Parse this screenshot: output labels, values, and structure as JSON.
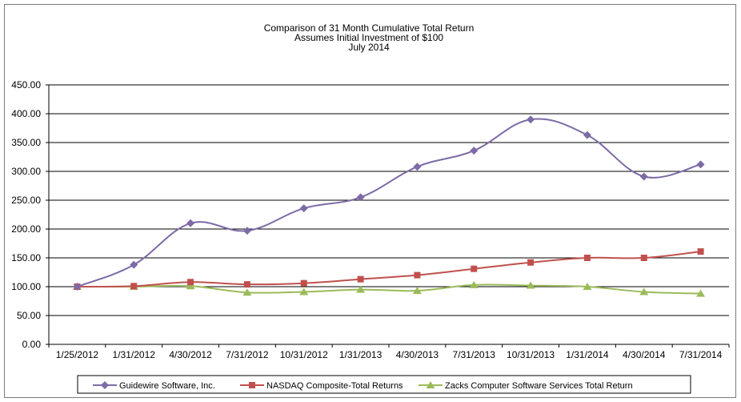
{
  "chart_data": {
    "type": "line",
    "title_lines": [
      "Comparison  of 31 Month Cumulative  Total Return",
      "Assumes Initial Investment  of $100",
      "July 2014"
    ],
    "categories": [
      "1/25/2012",
      "1/31/2012",
      "4/30/2012",
      "7/31/2012",
      "10/31/2012",
      "1/31/2013",
      "4/30/2013",
      "7/31/2013",
      "10/31/2013",
      "1/31/2014",
      "4/30/2014",
      "7/31/2014"
    ],
    "y_ticks": [
      "0.00",
      "50.00",
      "100.00",
      "150.00",
      "200.00",
      "250.00",
      "300.00",
      "350.00",
      "400.00",
      "450.00"
    ],
    "ylim": [
      0,
      450
    ],
    "grid": true,
    "legend_position": "bottom",
    "series": [
      {
        "name": "Guidewire Software, Inc.",
        "color": "#7d6aa6",
        "marker": "diamond",
        "values": [
          100,
          138,
          210,
          197,
          236,
          255,
          308,
          336,
          390,
          363,
          291,
          312
        ]
      },
      {
        "name": "NASDAQ Composite-Total Returns",
        "color": "#c0504d",
        "marker": "square",
        "values": [
          100,
          101,
          108,
          104,
          106,
          113,
          120,
          131,
          142,
          150,
          150,
          161
        ]
      },
      {
        "name": "Zacks Computer Software Services Total Return",
        "color": "#9bbb59",
        "marker": "triangle",
        "values": [
          100,
          100,
          101,
          90,
          91,
          95,
          93,
          103,
          102,
          100,
          91,
          88
        ]
      }
    ]
  }
}
